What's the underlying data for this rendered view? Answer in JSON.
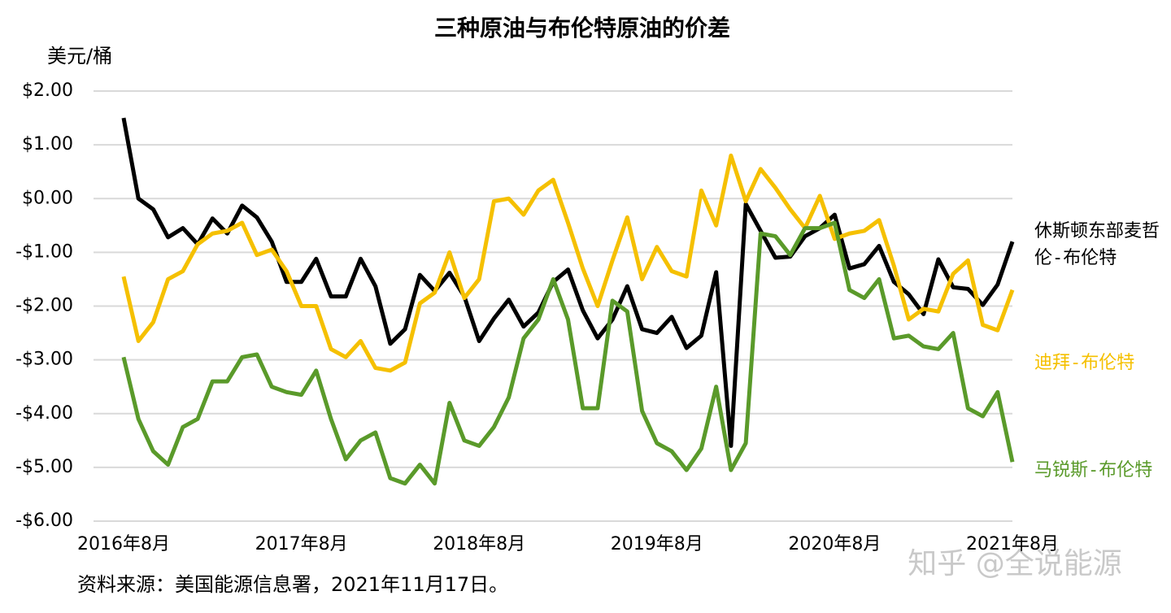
{
  "chart_data": {
    "type": "line",
    "title": "三种原油与布伦特原油的价差",
    "y_label": "美元/桶",
    "source": "资料来源：美国能源信息署，2021年11月17日。",
    "watermark": "知乎 @全说能源",
    "categories": [
      "2016年8月",
      null,
      null,
      null,
      null,
      null,
      null,
      null,
      null,
      null,
      null,
      null,
      "2017年8月",
      null,
      null,
      null,
      null,
      null,
      null,
      null,
      null,
      null,
      null,
      null,
      "2018年8月",
      null,
      null,
      null,
      null,
      null,
      null,
      null,
      null,
      null,
      null,
      null,
      "2019年8月",
      null,
      null,
      null,
      null,
      null,
      null,
      null,
      null,
      null,
      null,
      null,
      "2020年8月",
      null,
      null,
      null,
      null,
      null,
      null,
      null,
      null,
      null,
      null,
      null,
      "2021年8月"
    ],
    "ylim": [
      -6,
      2
    ],
    "yticks": [
      {
        "value": 2,
        "label": "$2.00"
      },
      {
        "value": 1,
        "label": "$1.00"
      },
      {
        "value": 0,
        "label": "$0.00"
      },
      {
        "value": -1,
        "label": "-$1.00"
      },
      {
        "value": -2,
        "label": "-$2.00"
      },
      {
        "value": -3,
        "label": "-$3.00"
      },
      {
        "value": -4,
        "label": "-$4.00"
      },
      {
        "value": -5,
        "label": "-$5.00"
      },
      {
        "value": -6,
        "label": "-$6.00"
      }
    ],
    "grid": true,
    "series": [
      {
        "name": "休斯顿东部麦哲伦-布伦特",
        "color": "#000000",
        "values": [
          1.5,
          0.0,
          -0.2,
          -0.72,
          -0.55,
          -0.85,
          -0.37,
          -0.65,
          -0.13,
          -0.35,
          -0.8,
          -1.55,
          -1.55,
          -1.12,
          -1.82,
          -1.82,
          -1.12,
          -1.63,
          -2.7,
          -2.43,
          -1.42,
          -1.72,
          -1.38,
          -1.82,
          -2.65,
          -2.23,
          -1.88,
          -2.38,
          -2.12,
          -1.55,
          -1.32,
          -2.08,
          -2.6,
          -2.25,
          -1.63,
          -2.43,
          -2.5,
          -2.2,
          -2.78,
          -2.55,
          -1.37,
          -4.6,
          -0.1,
          -0.6,
          -1.1,
          -1.08,
          -0.7,
          -0.55,
          -0.3,
          -1.3,
          -1.22,
          -0.88,
          -1.55,
          -1.78,
          -2.15,
          -1.13,
          -1.65,
          -1.68,
          -1.98,
          -1.6,
          -0.8
        ]
      },
      {
        "name": "迪拜-布伦特",
        "color": "#f5c000",
        "values": [
          -1.45,
          -2.65,
          -2.3,
          -1.5,
          -1.35,
          -0.85,
          -0.65,
          -0.6,
          -0.45,
          -1.05,
          -0.95,
          -1.35,
          -2.0,
          -2.0,
          -2.8,
          -2.95,
          -2.65,
          -3.15,
          -3.2,
          -3.05,
          -1.95,
          -1.75,
          -1.0,
          -1.85,
          -1.5,
          -0.05,
          0.0,
          -0.3,
          0.15,
          0.35,
          -0.45,
          -1.3,
          -2.0,
          -1.15,
          -0.35,
          -1.5,
          -0.9,
          -1.35,
          -1.45,
          0.15,
          -0.5,
          0.8,
          -0.05,
          0.55,
          0.2,
          -0.2,
          -0.55,
          0.05,
          -0.75,
          -0.65,
          -0.6,
          -0.4,
          -1.25,
          -2.25,
          -2.05,
          -2.1,
          -1.4,
          -1.15,
          -2.35,
          -2.45,
          -1.7
        ]
      },
      {
        "name": "马锐斯-布伦特",
        "color": "#5a9a2a",
        "values": [
          -2.95,
          -4.1,
          -4.7,
          -4.95,
          -4.25,
          -4.1,
          -3.4,
          -3.4,
          -2.95,
          -2.9,
          -3.5,
          -3.6,
          -3.65,
          -3.2,
          -4.1,
          -4.85,
          -4.5,
          -4.35,
          -5.2,
          -5.3,
          -4.95,
          -5.3,
          -3.8,
          -4.5,
          -4.6,
          -4.25,
          -3.7,
          -2.6,
          -2.25,
          -1.5,
          -2.25,
          -3.9,
          -3.9,
          -1.9,
          -2.1,
          -3.95,
          -4.55,
          -4.7,
          -5.05,
          -4.65,
          -3.5,
          -5.05,
          -4.55,
          -0.65,
          -0.7,
          -1.05,
          -0.55,
          -0.55,
          -0.45,
          -1.7,
          -1.85,
          -1.5,
          -2.6,
          -2.55,
          -2.75,
          -2.8,
          -2.5,
          -3.9,
          -4.05,
          -3.6,
          -4.9
        ]
      }
    ]
  }
}
